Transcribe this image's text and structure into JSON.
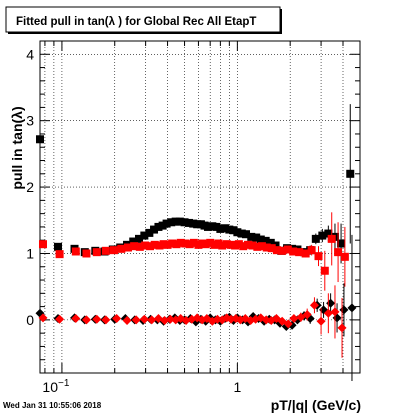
{
  "chart_data": {
    "type": "scatter",
    "title": "Fitted pull in tan(λ ) for Global Rec All EtapT",
    "xlabel": "pT/|q| (GeV/c)",
    "ylabel": "pull in tan(λ)",
    "x_scale": "log",
    "xlim": [
      0.075,
      5.0
    ],
    "ylim": [
      -0.8,
      4.2
    ],
    "grid": true,
    "x_tick_labels": [
      {
        "value": 0.1,
        "base": "10",
        "exp": "−1"
      },
      {
        "value": 1,
        "base": "1",
        "exp": ""
      }
    ],
    "y_ticks": [
      0,
      1,
      2,
      3,
      4
    ],
    "timestamp": "Wed Jan 31 10:55:06 2018",
    "series": [
      {
        "role": "sigma",
        "color": "#000000",
        "marker": "square",
        "x": [
          0.075,
          0.095,
          0.118,
          0.135,
          0.155,
          0.175,
          0.195,
          0.215,
          0.235,
          0.255,
          0.275,
          0.295,
          0.315,
          0.335,
          0.355,
          0.375,
          0.395,
          0.42,
          0.445,
          0.47,
          0.5,
          0.53,
          0.56,
          0.59,
          0.62,
          0.65,
          0.68,
          0.72,
          0.76,
          0.8,
          0.85,
          0.9,
          0.95,
          1.0,
          1.06,
          1.12,
          1.2,
          1.28,
          1.36,
          1.45,
          1.55,
          1.65,
          1.78,
          1.92,
          2.05,
          2.2,
          2.4,
          2.6,
          2.8,
          3.05,
          3.3,
          3.6,
          3.9,
          4.4
        ],
        "y": [
          2.72,
          1.1,
          1.07,
          1.02,
          1.04,
          1.03,
          1.06,
          1.09,
          1.13,
          1.18,
          1.22,
          1.27,
          1.31,
          1.36,
          1.4,
          1.42,
          1.45,
          1.47,
          1.48,
          1.48,
          1.47,
          1.46,
          1.45,
          1.44,
          1.44,
          1.42,
          1.4,
          1.41,
          1.4,
          1.37,
          1.38,
          1.36,
          1.35,
          1.32,
          1.3,
          1.29,
          1.25,
          1.24,
          1.21,
          1.19,
          1.16,
          1.12,
          1.04,
          1.08,
          1.07,
          1.06,
          1.02,
          1.05,
          1.22,
          1.27,
          1.3,
          1.25,
          1.15,
          2.2
        ],
        "y_err": [
          0.06,
          0.03,
          0.03,
          0.02,
          0.02,
          0.02,
          0.02,
          0.02,
          0.02,
          0.02,
          0.02,
          0.02,
          0.02,
          0.02,
          0.02,
          0.02,
          0.02,
          0.02,
          0.02,
          0.02,
          0.02,
          0.02,
          0.02,
          0.02,
          0.02,
          0.02,
          0.02,
          0.02,
          0.02,
          0.02,
          0.02,
          0.02,
          0.02,
          0.02,
          0.02,
          0.02,
          0.02,
          0.02,
          0.03,
          0.03,
          0.03,
          0.03,
          0.04,
          0.04,
          0.05,
          0.05,
          0.06,
          0.07,
          0.08,
          0.1,
          0.12,
          0.2,
          0.3,
          1.05
        ]
      },
      {
        "role": "sigma",
        "color": "#ff0000",
        "marker": "square",
        "x": [
          0.078,
          0.097,
          0.12,
          0.138,
          0.158,
          0.178,
          0.198,
          0.218,
          0.238,
          0.258,
          0.278,
          0.298,
          0.318,
          0.338,
          0.36,
          0.38,
          0.4,
          0.425,
          0.45,
          0.475,
          0.505,
          0.535,
          0.565,
          0.6,
          0.63,
          0.66,
          0.7,
          0.74,
          0.78,
          0.82,
          0.87,
          0.92,
          0.97,
          1.02,
          1.08,
          1.15,
          1.22,
          1.3,
          1.38,
          1.47,
          1.57,
          1.68,
          1.8,
          1.94,
          2.08,
          2.25,
          2.45,
          2.65,
          2.9,
          3.15,
          3.45,
          3.75,
          4.1
        ],
        "y": [
          1.14,
          0.99,
          1.03,
          1.0,
          1.02,
          1.04,
          1.05,
          1.07,
          1.09,
          1.11,
          1.1,
          1.12,
          1.11,
          1.13,
          1.12,
          1.14,
          1.13,
          1.15,
          1.14,
          1.16,
          1.15,
          1.14,
          1.16,
          1.13,
          1.15,
          1.14,
          1.16,
          1.13,
          1.15,
          1.12,
          1.14,
          1.13,
          1.12,
          1.14,
          1.11,
          1.13,
          1.12,
          1.1,
          1.11,
          1.09,
          1.08,
          1.05,
          1.04,
          1.06,
          1.03,
          1.02,
          1.0,
          1.05,
          0.96,
          0.74,
          1.22,
          1.02,
          0.95
        ],
        "y_err": [
          0.04,
          0.03,
          0.02,
          0.02,
          0.02,
          0.02,
          0.02,
          0.02,
          0.02,
          0.02,
          0.02,
          0.02,
          0.02,
          0.02,
          0.02,
          0.02,
          0.02,
          0.02,
          0.02,
          0.02,
          0.02,
          0.02,
          0.02,
          0.02,
          0.02,
          0.02,
          0.02,
          0.02,
          0.02,
          0.02,
          0.02,
          0.02,
          0.02,
          0.02,
          0.02,
          0.02,
          0.02,
          0.02,
          0.02,
          0.03,
          0.03,
          0.03,
          0.04,
          0.04,
          0.04,
          0.05,
          0.06,
          0.08,
          0.15,
          0.3,
          0.4,
          0.45,
          0.45
        ]
      },
      {
        "role": "mean",
        "color": "#000000",
        "marker": "diamond",
        "x": [
          0.075,
          0.095,
          0.118,
          0.135,
          0.155,
          0.175,
          0.2,
          0.23,
          0.26,
          0.29,
          0.32,
          0.35,
          0.38,
          0.41,
          0.44,
          0.47,
          0.5,
          0.54,
          0.58,
          0.62,
          0.66,
          0.7,
          0.75,
          0.8,
          0.85,
          0.9,
          0.95,
          1.0,
          1.07,
          1.15,
          1.23,
          1.32,
          1.42,
          1.52,
          1.63,
          1.75,
          1.9,
          2.05,
          2.2,
          2.4,
          2.6,
          2.85,
          3.1,
          3.4,
          3.7,
          4.05,
          4.5
        ],
        "y": [
          0.1,
          0.02,
          0.03,
          0.0,
          0.01,
          0.0,
          0.01,
          0.02,
          0.0,
          -0.01,
          0.01,
          0.0,
          -0.02,
          0.01,
          0.03,
          -0.01,
          0.0,
          0.02,
          -0.03,
          0.01,
          -0.02,
          0.03,
          0.0,
          -0.02,
          0.02,
          0.04,
          -0.01,
          0.03,
          0.0,
          -0.03,
          0.05,
          0.02,
          -0.02,
          0.01,
          0.0,
          -0.05,
          -0.1,
          -0.08,
          0.0,
          0.06,
          0.02,
          0.22,
          0.15,
          0.25,
          0.03,
          0.15,
          0.18
        ],
        "y_err": [
          0.04,
          0.02,
          0.02,
          0.02,
          0.02,
          0.02,
          0.02,
          0.02,
          0.02,
          0.02,
          0.02,
          0.02,
          0.02,
          0.02,
          0.02,
          0.02,
          0.02,
          0.02,
          0.02,
          0.02,
          0.02,
          0.02,
          0.02,
          0.02,
          0.02,
          0.02,
          0.02,
          0.02,
          0.02,
          0.02,
          0.02,
          0.03,
          0.03,
          0.03,
          0.03,
          0.04,
          0.05,
          0.06,
          0.06,
          0.07,
          0.08,
          0.1,
          0.12,
          0.15,
          0.22,
          0.4,
          1.1
        ]
      },
      {
        "role": "mean",
        "color": "#ff0000",
        "marker": "diamond",
        "x": [
          0.078,
          0.097,
          0.12,
          0.138,
          0.158,
          0.178,
          0.205,
          0.235,
          0.265,
          0.295,
          0.325,
          0.355,
          0.385,
          0.415,
          0.445,
          0.475,
          0.51,
          0.55,
          0.59,
          0.63,
          0.67,
          0.72,
          0.77,
          0.82,
          0.87,
          0.92,
          0.98,
          1.04,
          1.11,
          1.19,
          1.27,
          1.36,
          1.46,
          1.56,
          1.67,
          1.8,
          1.95,
          2.1,
          2.3,
          2.5,
          2.75,
          3.0,
          3.3,
          3.6,
          3.95
        ],
        "y": [
          0.03,
          0.01,
          0.02,
          0.0,
          0.01,
          0.0,
          0.02,
          -0.01,
          0.0,
          0.01,
          0.0,
          0.02,
          -0.01,
          0.01,
          0.0,
          0.02,
          -0.01,
          0.01,
          0.03,
          0.0,
          0.02,
          -0.02,
          0.01,
          0.0,
          0.03,
          0.01,
          0.02,
          0.0,
          0.02,
          -0.01,
          0.01,
          0.03,
          0.0,
          -0.01,
          0.02,
          -0.02,
          -0.06,
          0.02,
          0.04,
          0.08,
          0.22,
          -0.02,
          0.1,
          0.12,
          -0.12
        ],
        "y_err": [
          0.03,
          0.02,
          0.02,
          0.02,
          0.02,
          0.02,
          0.02,
          0.02,
          0.02,
          0.02,
          0.02,
          0.02,
          0.02,
          0.02,
          0.02,
          0.02,
          0.02,
          0.02,
          0.02,
          0.02,
          0.02,
          0.02,
          0.02,
          0.02,
          0.02,
          0.02,
          0.02,
          0.02,
          0.02,
          0.02,
          0.02,
          0.02,
          0.03,
          0.03,
          0.03,
          0.04,
          0.05,
          0.06,
          0.07,
          0.09,
          0.12,
          0.2,
          0.3,
          0.4,
          0.45
        ]
      }
    ]
  }
}
